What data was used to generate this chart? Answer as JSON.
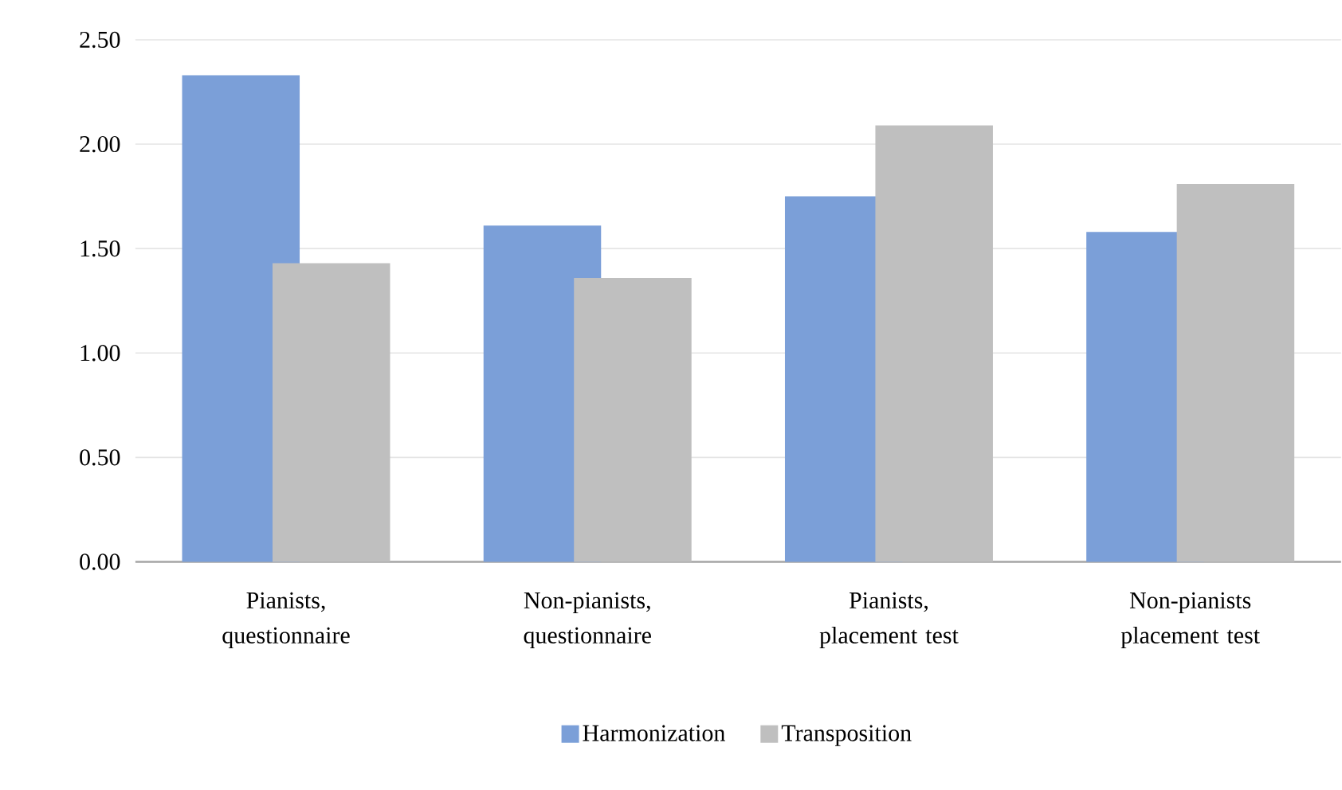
{
  "chart_data": {
    "type": "bar",
    "categories": [
      "Pianists, questionnaire",
      "Non-pianists, questionnaire",
      "Pianists, placement test",
      "Non-pianists placement test"
    ],
    "series": [
      {
        "name": "Harmonization",
        "color": "#7b9fd8",
        "values": [
          2.33,
          1.61,
          1.75,
          1.58
        ]
      },
      {
        "name": "Transposition",
        "color": "#bfbfbf",
        "values": [
          1.43,
          1.36,
          2.09,
          1.81
        ]
      }
    ],
    "ylim": [
      0,
      2.5
    ],
    "yticks": [
      {
        "value": 0,
        "label": "0.00"
      },
      {
        "value": 0.5,
        "label": "0.50"
      },
      {
        "value": 1,
        "label": "1.00"
      },
      {
        "value": 1.5,
        "label": "1.50"
      },
      {
        "value": 2,
        "label": "2.00"
      },
      {
        "value": 2.5,
        "label": "2.50"
      }
    ],
    "grid": "y",
    "legend": "bottom"
  }
}
